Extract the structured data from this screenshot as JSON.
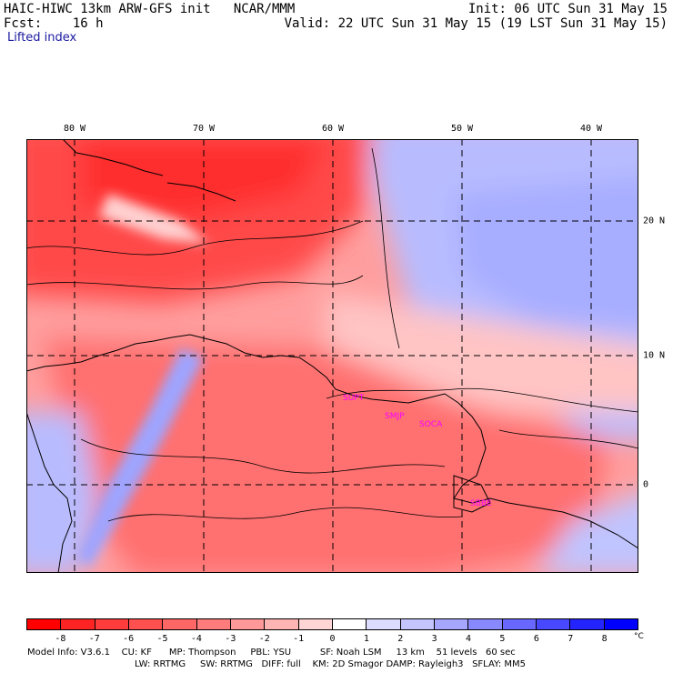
{
  "header": {
    "left_line1": "HAIC-HIWC 13km ARW-GFS init   NCAR/MMM",
    "left_line2": "Fcst:    16 h",
    "right_line1": "Init: 06 UTC Sun 31 May 15",
    "right_line2": "Valid: 22 UTC Sun 31 May 15 (19 LST Sun 31 May 15)",
    "field_label": "Lifted index"
  },
  "map": {
    "longitude_labels": [
      "80 W",
      "70 W",
      "60 W",
      "50 W",
      "40 W"
    ],
    "latitude_labels": [
      "20 N",
      "10 N",
      "0"
    ],
    "station_labels": [
      "SUPT",
      "SMJP",
      "SOCA",
      "SBBE"
    ],
    "colors": {
      "station_label": "#ff00ff",
      "coast": "#000000",
      "contour": "#000000",
      "gridline": "#000000"
    }
  },
  "colorbar": {
    "tick_labels": [
      "-8",
      "-7",
      "-6",
      "-5",
      "-4",
      "-3",
      "-2",
      "-1",
      "0",
      "1",
      "2",
      "3",
      "4",
      "5",
      "6",
      "7",
      "8"
    ],
    "unit": "°C",
    "colors": [
      "#ff0000",
      "#ff2424",
      "#ff3c3c",
      "#ff5050",
      "#ff6666",
      "#ff7c7c",
      "#ff9898",
      "#ffb4b4",
      "#ffd4d4",
      "#ffffff",
      "#dcdcff",
      "#c4c4ff",
      "#a6a6ff",
      "#8888ff",
      "#6868ff",
      "#4848ff",
      "#2424ff",
      "#0000ff"
    ]
  },
  "model_info": {
    "line1": "Model Info: V3.6.1    CU: KF      MP: Thompson     PBL: YSU          SF: Noah LSM     13 km    51 levels   60 sec",
    "line2": "LW: RRTMG     SW: RRTMG   DIFF: full    KM: 2D Smagor DAMP: Rayleigh3   SFLAY: MM5"
  }
}
